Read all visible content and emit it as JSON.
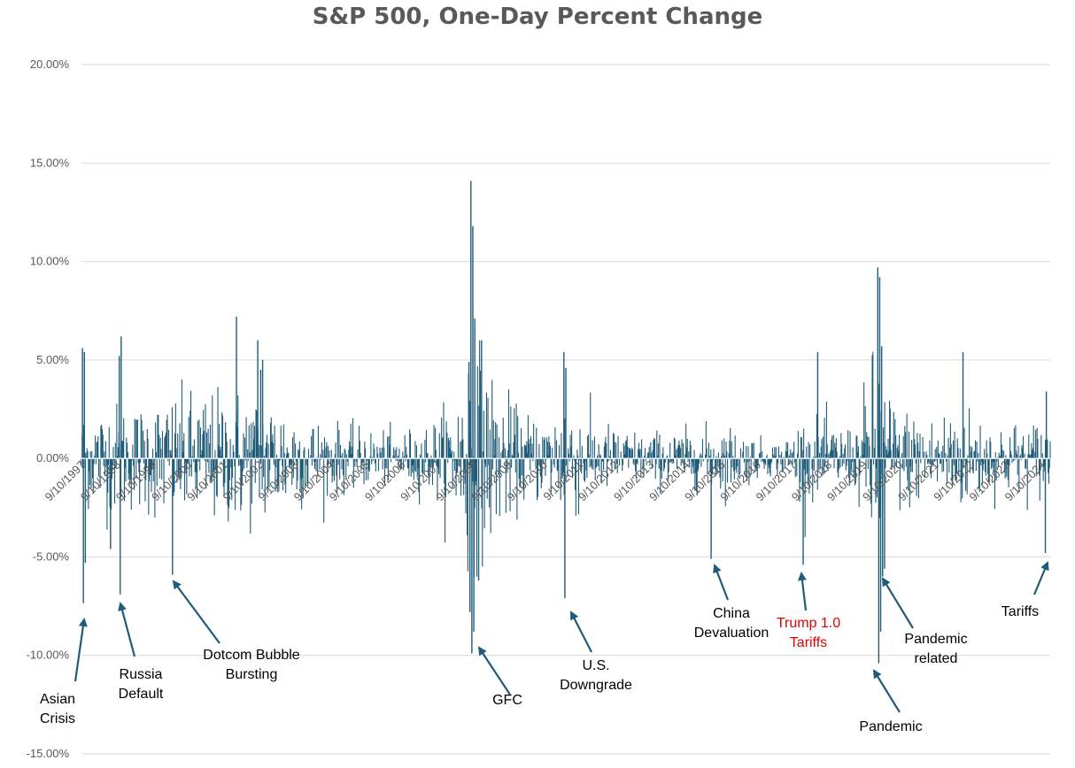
{
  "chart_data": {
    "type": "bar",
    "title": "S&P 500, One-Day Percent Change",
    "xlabel": "",
    "ylabel": "",
    "ylim": [
      -0.15,
      0.2
    ],
    "yticks": [
      "20.00%",
      "15.00%",
      "10.00%",
      "5.00%",
      "0.00%",
      "-5.00%",
      "-10.00%",
      "-15.00%"
    ],
    "ytick_values": [
      0.2,
      0.15,
      0.1,
      0.05,
      0.0,
      -0.05,
      -0.1,
      -0.15
    ],
    "grid": true,
    "legend": "none",
    "bar_color": "#1f5c7a",
    "x_tick_labels": [
      "9/10/1997",
      "9/10/1998",
      "9/10/1999",
      "9/10/2000",
      "9/10/2001",
      "9/10/2002",
      "9/10/2003",
      "9/10/2004",
      "9/10/2005",
      "9/10/2006",
      "9/10/2007",
      "9/10/2008",
      "9/10/2009",
      "9/10/2010",
      "9/10/2011",
      "9/10/2012",
      "9/10/2013",
      "9/10/2014",
      "9/10/2015",
      "9/10/2016",
      "9/10/2017",
      "9/10/2018",
      "9/10/2019",
      "9/10/2020",
      "9/10/2021",
      "9/10/2022",
      "9/10/2023",
      "9/10/2024"
    ],
    "notable_moves": [
      {
        "date": "10/27/1997",
        "value": -0.0735
      },
      {
        "date": "10/28/1997",
        "value": 0.0576
      },
      {
        "date": "8/31/1998",
        "value": -0.0694
      },
      {
        "date": "9/8/1998",
        "value": 0.0622
      },
      {
        "date": "4/14/2000",
        "value": -0.0583
      },
      {
        "date": "3/16/2000",
        "value": 0.0479
      },
      {
        "date": "1/3/2001",
        "value": 0.0501
      },
      {
        "date": "7/24/2002",
        "value": 0.0573
      },
      {
        "date": "10/13/2008",
        "value": 0.1158
      },
      {
        "date": "10/28/2008",
        "value": 0.1079
      },
      {
        "date": "10/15/2008",
        "value": -0.0903
      },
      {
        "date": "12/1/2008",
        "value": -0.0893
      },
      {
        "date": "3/23/2009",
        "value": 0.0708
      },
      {
        "date": "8/8/2011",
        "value": -0.0666
      },
      {
        "date": "8/9/2011",
        "value": 0.0474
      },
      {
        "date": "8/24/2015",
        "value": -0.0394
      },
      {
        "date": "2/5/2018",
        "value": -0.041
      },
      {
        "date": "12/26/2018",
        "value": 0.0496
      },
      {
        "date": "3/16/2020",
        "value": -0.1198
      },
      {
        "date": "3/24/2020",
        "value": 0.0938
      },
      {
        "date": "3/13/2020",
        "value": 0.0929
      },
      {
        "date": "3/12/2020",
        "value": -0.0951
      },
      {
        "date": "11/10/2022",
        "value": 0.0554
      },
      {
        "date": "4/4/2025",
        "value": -0.0484
      },
      {
        "date": "4/3/2025",
        "value": -0.0597
      }
    ],
    "annotations": [
      {
        "lines": [
          "Asian",
          "Crisis"
        ],
        "color": "#000000"
      },
      {
        "lines": [
          "Russia",
          "Default"
        ],
        "color": "#000000"
      },
      {
        "lines": [
          "Dotcom Bubble",
          "Bursting"
        ],
        "color": "#000000"
      },
      {
        "lines": [
          "GFC"
        ],
        "color": "#000000"
      },
      {
        "lines": [
          "U.S.",
          "Downgrade"
        ],
        "color": "#000000"
      },
      {
        "lines": [
          "China",
          "Devaluation"
        ],
        "color": "#000000"
      },
      {
        "lines": [
          "Trump 1.0",
          "Tariffs"
        ],
        "color": "#e00000"
      },
      {
        "lines": [
          "Pandemic"
        ],
        "color": "#000000"
      },
      {
        "lines": [
          "Pandemic",
          "related"
        ],
        "color": "#000000"
      },
      {
        "lines": [
          "Tariffs"
        ],
        "color": "#000000"
      }
    ],
    "spikes": [
      {
        "t": 0.001,
        "v": 0.056
      },
      {
        "t": 0.002,
        "v": -0.0735
      },
      {
        "t": 0.003,
        "v": 0.054
      },
      {
        "t": 0.004,
        "v": -0.053
      },
      {
        "t": 0.03,
        "v": -0.046
      },
      {
        "t": 0.039,
        "v": 0.052
      },
      {
        "t": 0.04,
        "v": -0.069
      },
      {
        "t": 0.041,
        "v": 0.062
      },
      {
        "t": 0.094,
        "v": -0.059
      },
      {
        "t": 0.16,
        "v": 0.072
      },
      {
        "t": 0.182,
        "v": 0.06
      },
      {
        "t": 0.185,
        "v": 0.045
      },
      {
        "t": 0.187,
        "v": 0.05
      },
      {
        "t": 0.4,
        "v": 0.049
      },
      {
        "t": 0.401,
        "v": -0.078
      },
      {
        "t": 0.402,
        "v": 0.141
      },
      {
        "t": 0.403,
        "v": -0.099
      },
      {
        "t": 0.404,
        "v": 0.118
      },
      {
        "t": 0.405,
        "v": -0.088
      },
      {
        "t": 0.406,
        "v": 0.071
      },
      {
        "t": 0.41,
        "v": -0.062
      },
      {
        "t": 0.413,
        "v": 0.06
      },
      {
        "t": 0.498,
        "v": 0.054
      },
      {
        "t": 0.499,
        "v": -0.071
      },
      {
        "t": 0.5,
        "v": 0.046
      },
      {
        "t": 0.65,
        "v": -0.051
      },
      {
        "t": 0.745,
        "v": -0.054
      },
      {
        "t": 0.76,
        "v": 0.054
      },
      {
        "t": 0.822,
        "v": 0.097
      },
      {
        "t": 0.823,
        "v": -0.104
      },
      {
        "t": 0.824,
        "v": 0.092
      },
      {
        "t": 0.825,
        "v": -0.088
      },
      {
        "t": 0.826,
        "v": 0.057
      },
      {
        "t": 0.827,
        "v": -0.06
      },
      {
        "t": 0.829,
        "v": -0.056
      },
      {
        "t": 0.91,
        "v": 0.054
      },
      {
        "t": 0.995,
        "v": -0.048
      },
      {
        "t": 0.996,
        "v": 0.034
      }
    ]
  }
}
